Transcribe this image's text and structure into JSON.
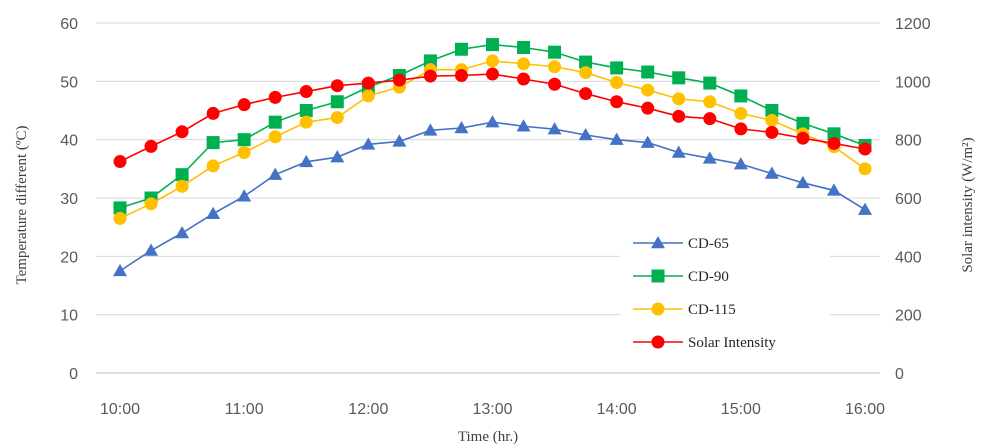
{
  "chart_data": {
    "type": "line",
    "x": [
      "10:00",
      "10:15",
      "10:30",
      "10:45",
      "11:00",
      "11:15",
      "11:30",
      "11:45",
      "12:00",
      "12:15",
      "12:30",
      "12:45",
      "13:00",
      "13:15",
      "13:30",
      "13:45",
      "14:00",
      "14:15",
      "14:30",
      "14:45",
      "15:00",
      "15:15",
      "15:30",
      "15:45",
      "16:00"
    ],
    "x_tick_labels": [
      "10:00",
      "11:00",
      "12:00",
      "13:00",
      "14:00",
      "15:00",
      "16:00"
    ],
    "xlabel": "Time (hr.)",
    "ylabel": "Temperature different (ºC)",
    "y2label": "Solar intensity (W/m²)",
    "ylim": [
      0,
      60
    ],
    "y_ticks": [
      "0",
      "10",
      "20",
      "30",
      "40",
      "50",
      "60"
    ],
    "y2lim": [
      0,
      1200
    ],
    "y2_ticks": [
      "0",
      "200",
      "400",
      "600",
      "800",
      "1000",
      "1200"
    ],
    "grid": "horizontal",
    "legend_position": "bottom-right",
    "series": [
      {
        "name": "CD-65",
        "axis": "left",
        "color": "#4472C4",
        "marker": "triangle",
        "values": [
          17.5,
          21,
          24,
          27.3,
          30.3,
          34,
          36.2,
          37,
          39.2,
          39.7,
          41.6,
          42,
          43,
          42.3,
          41.8,
          40.8,
          40,
          39.5,
          37.8,
          36.8,
          35.8,
          34.2,
          32.6,
          31.3,
          28
        ]
      },
      {
        "name": "CD-90",
        "axis": "left",
        "color": "#00B050",
        "marker": "square",
        "values": [
          28.3,
          30,
          34,
          39.5,
          40,
          43,
          45,
          46.5,
          49,
          51,
          53.5,
          55.5,
          56.3,
          55.8,
          55,
          53.3,
          52.3,
          51.6,
          50.6,
          49.7,
          47.5,
          45,
          42.8,
          41,
          39
        ]
      },
      {
        "name": "CD-115",
        "axis": "left",
        "color": "#FFC000",
        "marker": "circle",
        "values": [
          26.5,
          29,
          32,
          35.5,
          37.8,
          40.5,
          43,
          43.8,
          47.5,
          49,
          52,
          52,
          53.5,
          53,
          52.5,
          51.5,
          49.8,
          48.5,
          47,
          46.5,
          44.5,
          43.3,
          41,
          38.8,
          35
        ]
      },
      {
        "name": "Solar Intensity",
        "axis": "right",
        "color": "#FF0000",
        "marker": "circle",
        "values": [
          725,
          777,
          827,
          890,
          920,
          945,
          965,
          985,
          994,
          1004,
          1018,
          1020,
          1025,
          1008,
          990,
          958,
          930,
          908,
          880,
          872,
          837,
          825,
          805,
          787,
          768
        ]
      }
    ]
  }
}
